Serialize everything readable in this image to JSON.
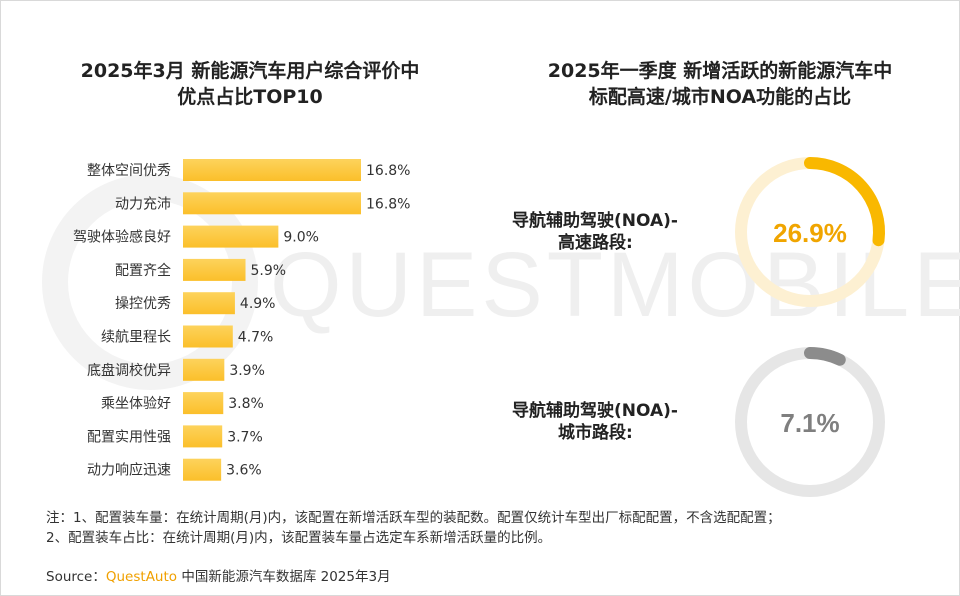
{
  "watermark": "QUESTMOBILE",
  "colors": {
    "bar": "#fbbf2a",
    "bar_top": "#fdd35c",
    "ring_track_1": "#fdf0d2",
    "ring_fill_1": "#f9b800",
    "ring_track_2": "#e6e6e6",
    "ring_fill_2": "#8c8c8c",
    "value_1": "#f0a500",
    "value_2": "#7f7f7f",
    "source_brand": "#f0a000"
  },
  "left_chart": {
    "title_line1": "2025年3月 新能源汽车用户综合评价中",
    "title_line2": "优点占比TOP10"
  },
  "right_chart": {
    "title_line1": "2025年一季度 新增活跃的新能源汽车中",
    "title_line2": "标配高速/城市NOA功能的占比"
  },
  "chart_data": [
    {
      "type": "bar",
      "orientation": "horizontal",
      "title": "2025年3月 新能源汽车用户综合评价中优点占比TOP10",
      "categories": [
        "整体空间优秀",
        "动力充沛",
        "驾驶体验感良好",
        "配置齐全",
        "操控优秀",
        "续航里程长",
        "底盘调校优异",
        "乘坐体验好",
        "配置实用性强",
        "动力响应迅速"
      ],
      "values": [
        16.8,
        16.8,
        9.0,
        5.9,
        4.9,
        4.7,
        3.9,
        3.8,
        3.7,
        3.6
      ],
      "value_labels": [
        "16.8%",
        "16.8%",
        "9.0%",
        "5.9%",
        "4.9%",
        "4.7%",
        "3.9%",
        "3.8%",
        "3.7%",
        "3.6%"
      ],
      "unit": "%"
    },
    {
      "type": "pie",
      "style": "donut",
      "title": "2025年一季度 新增活跃的新能源汽车中标配高速/城市NOA功能的占比",
      "items": [
        {
          "label_line1": "导航辅助驾驶(NOA)-",
          "label_line2": "高速路段:",
          "value": 26.9,
          "value_label": "26.9%"
        },
        {
          "label_line1": "导航辅助驾驶(NOA)-",
          "label_line2": "城市路段:",
          "value": 7.1,
          "value_label": "7.1%"
        }
      ]
    }
  ],
  "notes": {
    "line1": "注：1、配置装车量：在统计周期(月)内，该配置在新增活跃车型的装配数。配置仅统计车型出厂标配配置，不含选配配置；",
    "line2": "2、配置装车占比：在统计周期(月)内，该配置装车量占选定车系新增活跃量的比例。"
  },
  "source": {
    "prefix": "Source：",
    "brand": "QuestAuto",
    "suffix": " 中国新能源汽车数据库 2025年3月"
  }
}
